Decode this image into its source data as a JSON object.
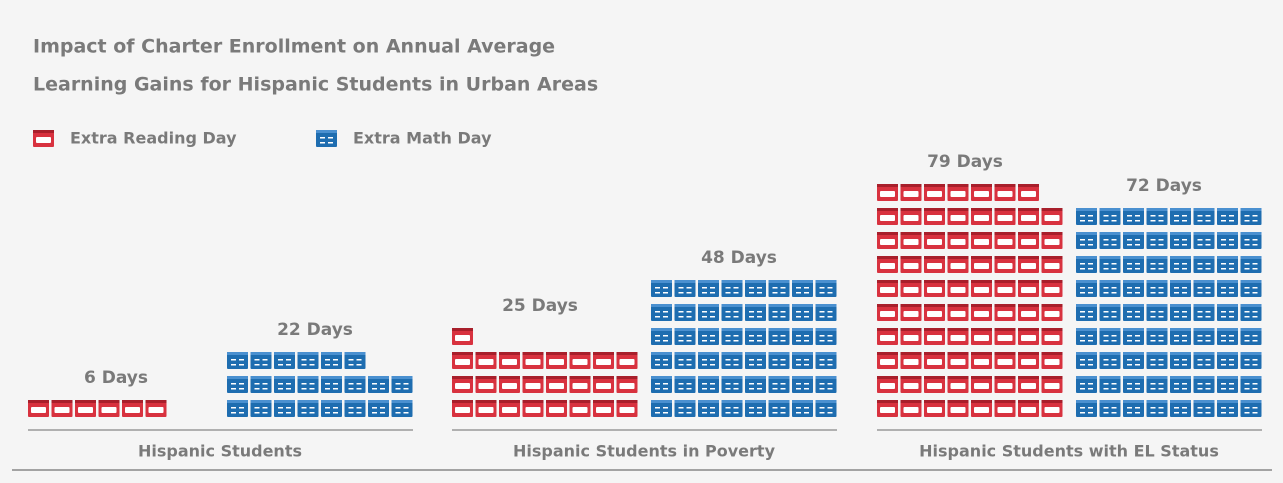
{
  "chart_data": {
    "type": "pictograph",
    "title_lines": [
      "Impact of Charter Enrollment on Annual Average",
      "Learning Gains for Hispanic Students in Urban Areas"
    ],
    "categories": [
      "Hispanic Students",
      "Hispanic Students in Poverty",
      "Hispanic Students with EL Status"
    ],
    "series": [
      {
        "name": "Extra Reading Day",
        "color": "#d8323f",
        "values": [
          6,
          25,
          79
        ],
        "value_labels": [
          "6 Days",
          "25 Days",
          "79 Days"
        ]
      },
      {
        "name": "Extra Math Day",
        "color": "#1e6db0",
        "values": [
          22,
          48,
          72
        ],
        "value_labels": [
          "22 Days",
          "48 Days",
          "72 Days"
        ]
      }
    ]
  }
}
